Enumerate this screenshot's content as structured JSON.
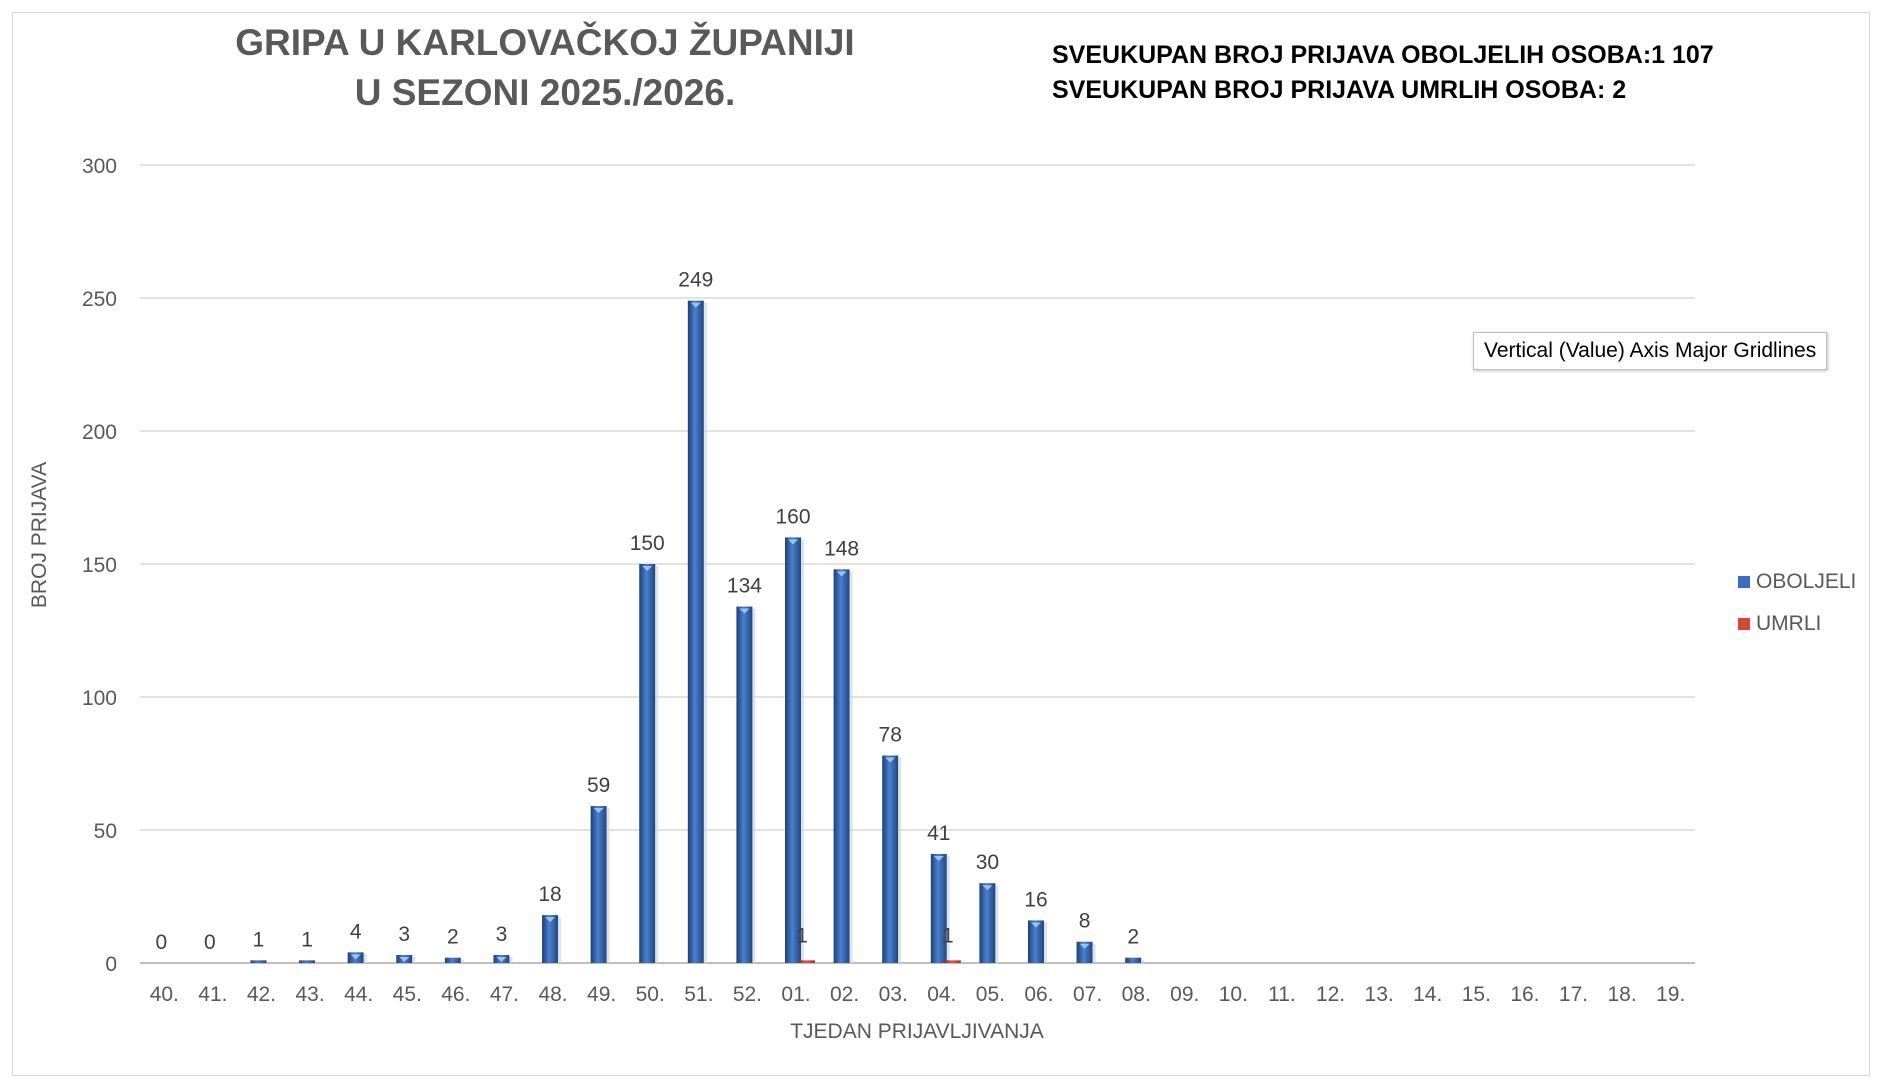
{
  "chart_data": {
    "type": "bar",
    "title": [
      "GRIPA U KARLOVAČKOJ ŽUPANIJI",
      "U SEZONI 2025./2026."
    ],
    "annotations": [
      "SVEUKUPAN BROJ PRIJAVA OBOLJELIH OSOBA:1 107",
      "SVEUKUPAN BROJ PRIJAVA UMRLIH OSOBA: 2"
    ],
    "xlabel": "TJEDAN PRIJAVLJIVANJA",
    "ylabel": "BROJ PRIJAVA",
    "ylim": [
      0,
      300
    ],
    "yticks": [
      0,
      50,
      100,
      150,
      200,
      250,
      300
    ],
    "grid": true,
    "legend_position": "right",
    "categories": [
      "40.",
      "41.",
      "42.",
      "43.",
      "44.",
      "45.",
      "46.",
      "47.",
      "48.",
      "49.",
      "50.",
      "51.",
      "52.",
      "01.",
      "02.",
      "03.",
      "04.",
      "05.",
      "06.",
      "07.",
      "08.",
      "09.",
      "10.",
      "11.",
      "12.",
      "13.",
      "14.",
      "15.",
      "16.",
      "17.",
      "18.",
      "19."
    ],
    "series": [
      {
        "name": "OBOLJELI",
        "color": "#3a6fbf",
        "values": [
          0,
          0,
          1,
          1,
          4,
          3,
          2,
          3,
          18,
          59,
          150,
          249,
          134,
          160,
          148,
          78,
          41,
          30,
          16,
          8,
          2,
          null,
          null,
          null,
          null,
          null,
          null,
          null,
          null,
          null,
          null,
          null
        ],
        "labels": [
          "0",
          "0",
          "1",
          "1",
          "4",
          "3",
          "2",
          "3",
          "18",
          "59",
          "150",
          "249",
          "134",
          "160",
          "148",
          "78",
          "41",
          "30",
          "16",
          "8",
          "2",
          "",
          "",
          "",
          "",
          "",
          "",
          "",
          "",
          "",
          "",
          ""
        ]
      },
      {
        "name": "UMRLI",
        "color": "#d9453b",
        "values": [
          null,
          null,
          null,
          null,
          null,
          null,
          null,
          null,
          null,
          null,
          null,
          null,
          null,
          1,
          null,
          null,
          1,
          null,
          null,
          null,
          null,
          null,
          null,
          null,
          null,
          null,
          null,
          null,
          null,
          null,
          null,
          null
        ],
        "labels": [
          "",
          "",
          "",
          "",
          "",
          "",
          "",
          "",
          "",
          "",
          "",
          "",
          "",
          "1",
          "",
          "",
          "1",
          "",
          "",
          "",
          "",
          "",
          "",
          "",
          "",
          "",
          "",
          "",
          "",
          "",
          "",
          ""
        ]
      }
    ]
  },
  "tooltip": {
    "text": "Vertical (Value) Axis Major Gridlines"
  },
  "colors": {
    "gridline": "#d9d9d9",
    "axis_text": "#595959",
    "title": "#595959"
  }
}
